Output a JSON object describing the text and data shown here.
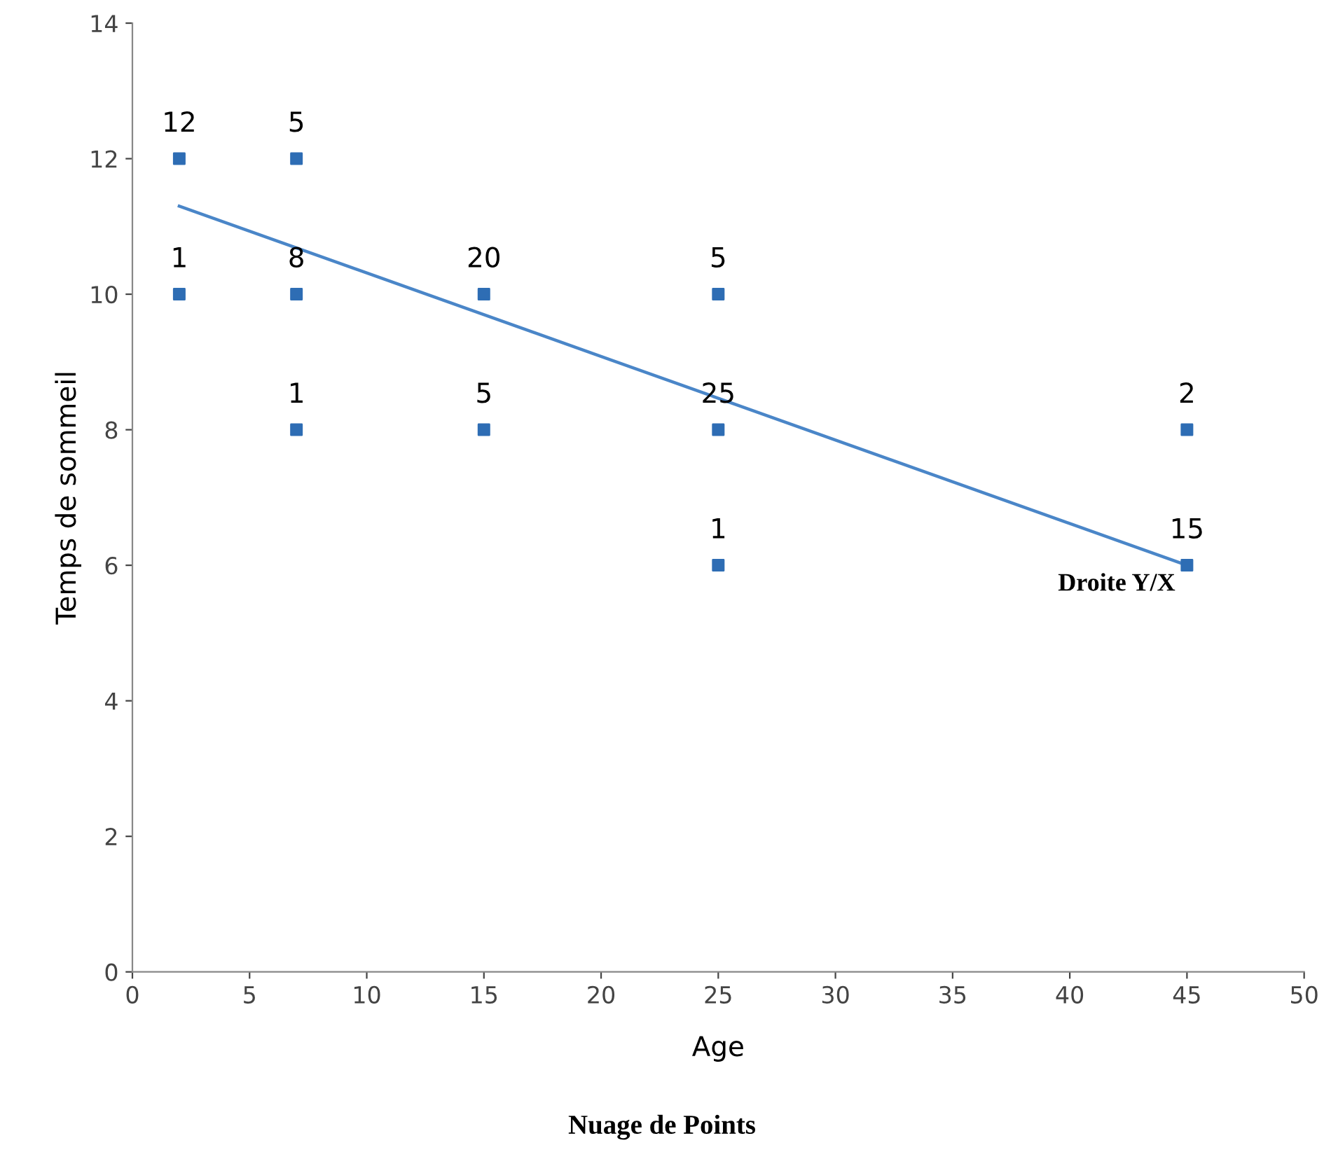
{
  "chart_data": {
    "type": "scatter",
    "title": "Nuage de Points",
    "xlabel": "Age",
    "ylabel": "Temps de sommeil",
    "xlim": [
      0,
      50
    ],
    "xticks": [
      0,
      5,
      10,
      15,
      20,
      25,
      30,
      35,
      40,
      45,
      50
    ],
    "ylim": [
      0,
      14
    ],
    "yticks": [
      0,
      2,
      4,
      6,
      8,
      10,
      12,
      14
    ],
    "grid": false,
    "legend": false,
    "marker": "square",
    "series": [
      {
        "color": "#2e6db4",
        "x": [
          2,
          7,
          2,
          7,
          15,
          25,
          7,
          15,
          25,
          45,
          25,
          45
        ],
        "values": [
          12,
          12,
          10,
          10,
          10,
          10,
          8,
          8,
          8,
          8,
          6,
          6
        ]
      },
      {
        "type": "line",
        "marker": "none",
        "color": "#4a86c8",
        "x": [
          2,
          45
        ],
        "values": [
          11.3,
          6.0
        ]
      }
    ],
    "annotations": [
      {
        "text": "12",
        "x": 2,
        "y": 12
      },
      {
        "text": "5",
        "x": 7,
        "y": 12
      },
      {
        "text": "1",
        "x": 2,
        "y": 10
      },
      {
        "text": "8",
        "x": 7,
        "y": 10
      },
      {
        "text": "20",
        "x": 15,
        "y": 10
      },
      {
        "text": "5",
        "x": 25,
        "y": 10
      },
      {
        "text": "1",
        "x": 7,
        "y": 8
      },
      {
        "text": "5",
        "x": 15,
        "y": 8
      },
      {
        "text": "25",
        "x": 25,
        "y": 8
      },
      {
        "text": "2",
        "x": 45,
        "y": 8
      },
      {
        "text": "1",
        "x": 25,
        "y": 6
      },
      {
        "text": "15",
        "x": 45,
        "y": 6
      },
      {
        "text": "Droite Y/X",
        "x": 45,
        "y": 6
      }
    ]
  }
}
